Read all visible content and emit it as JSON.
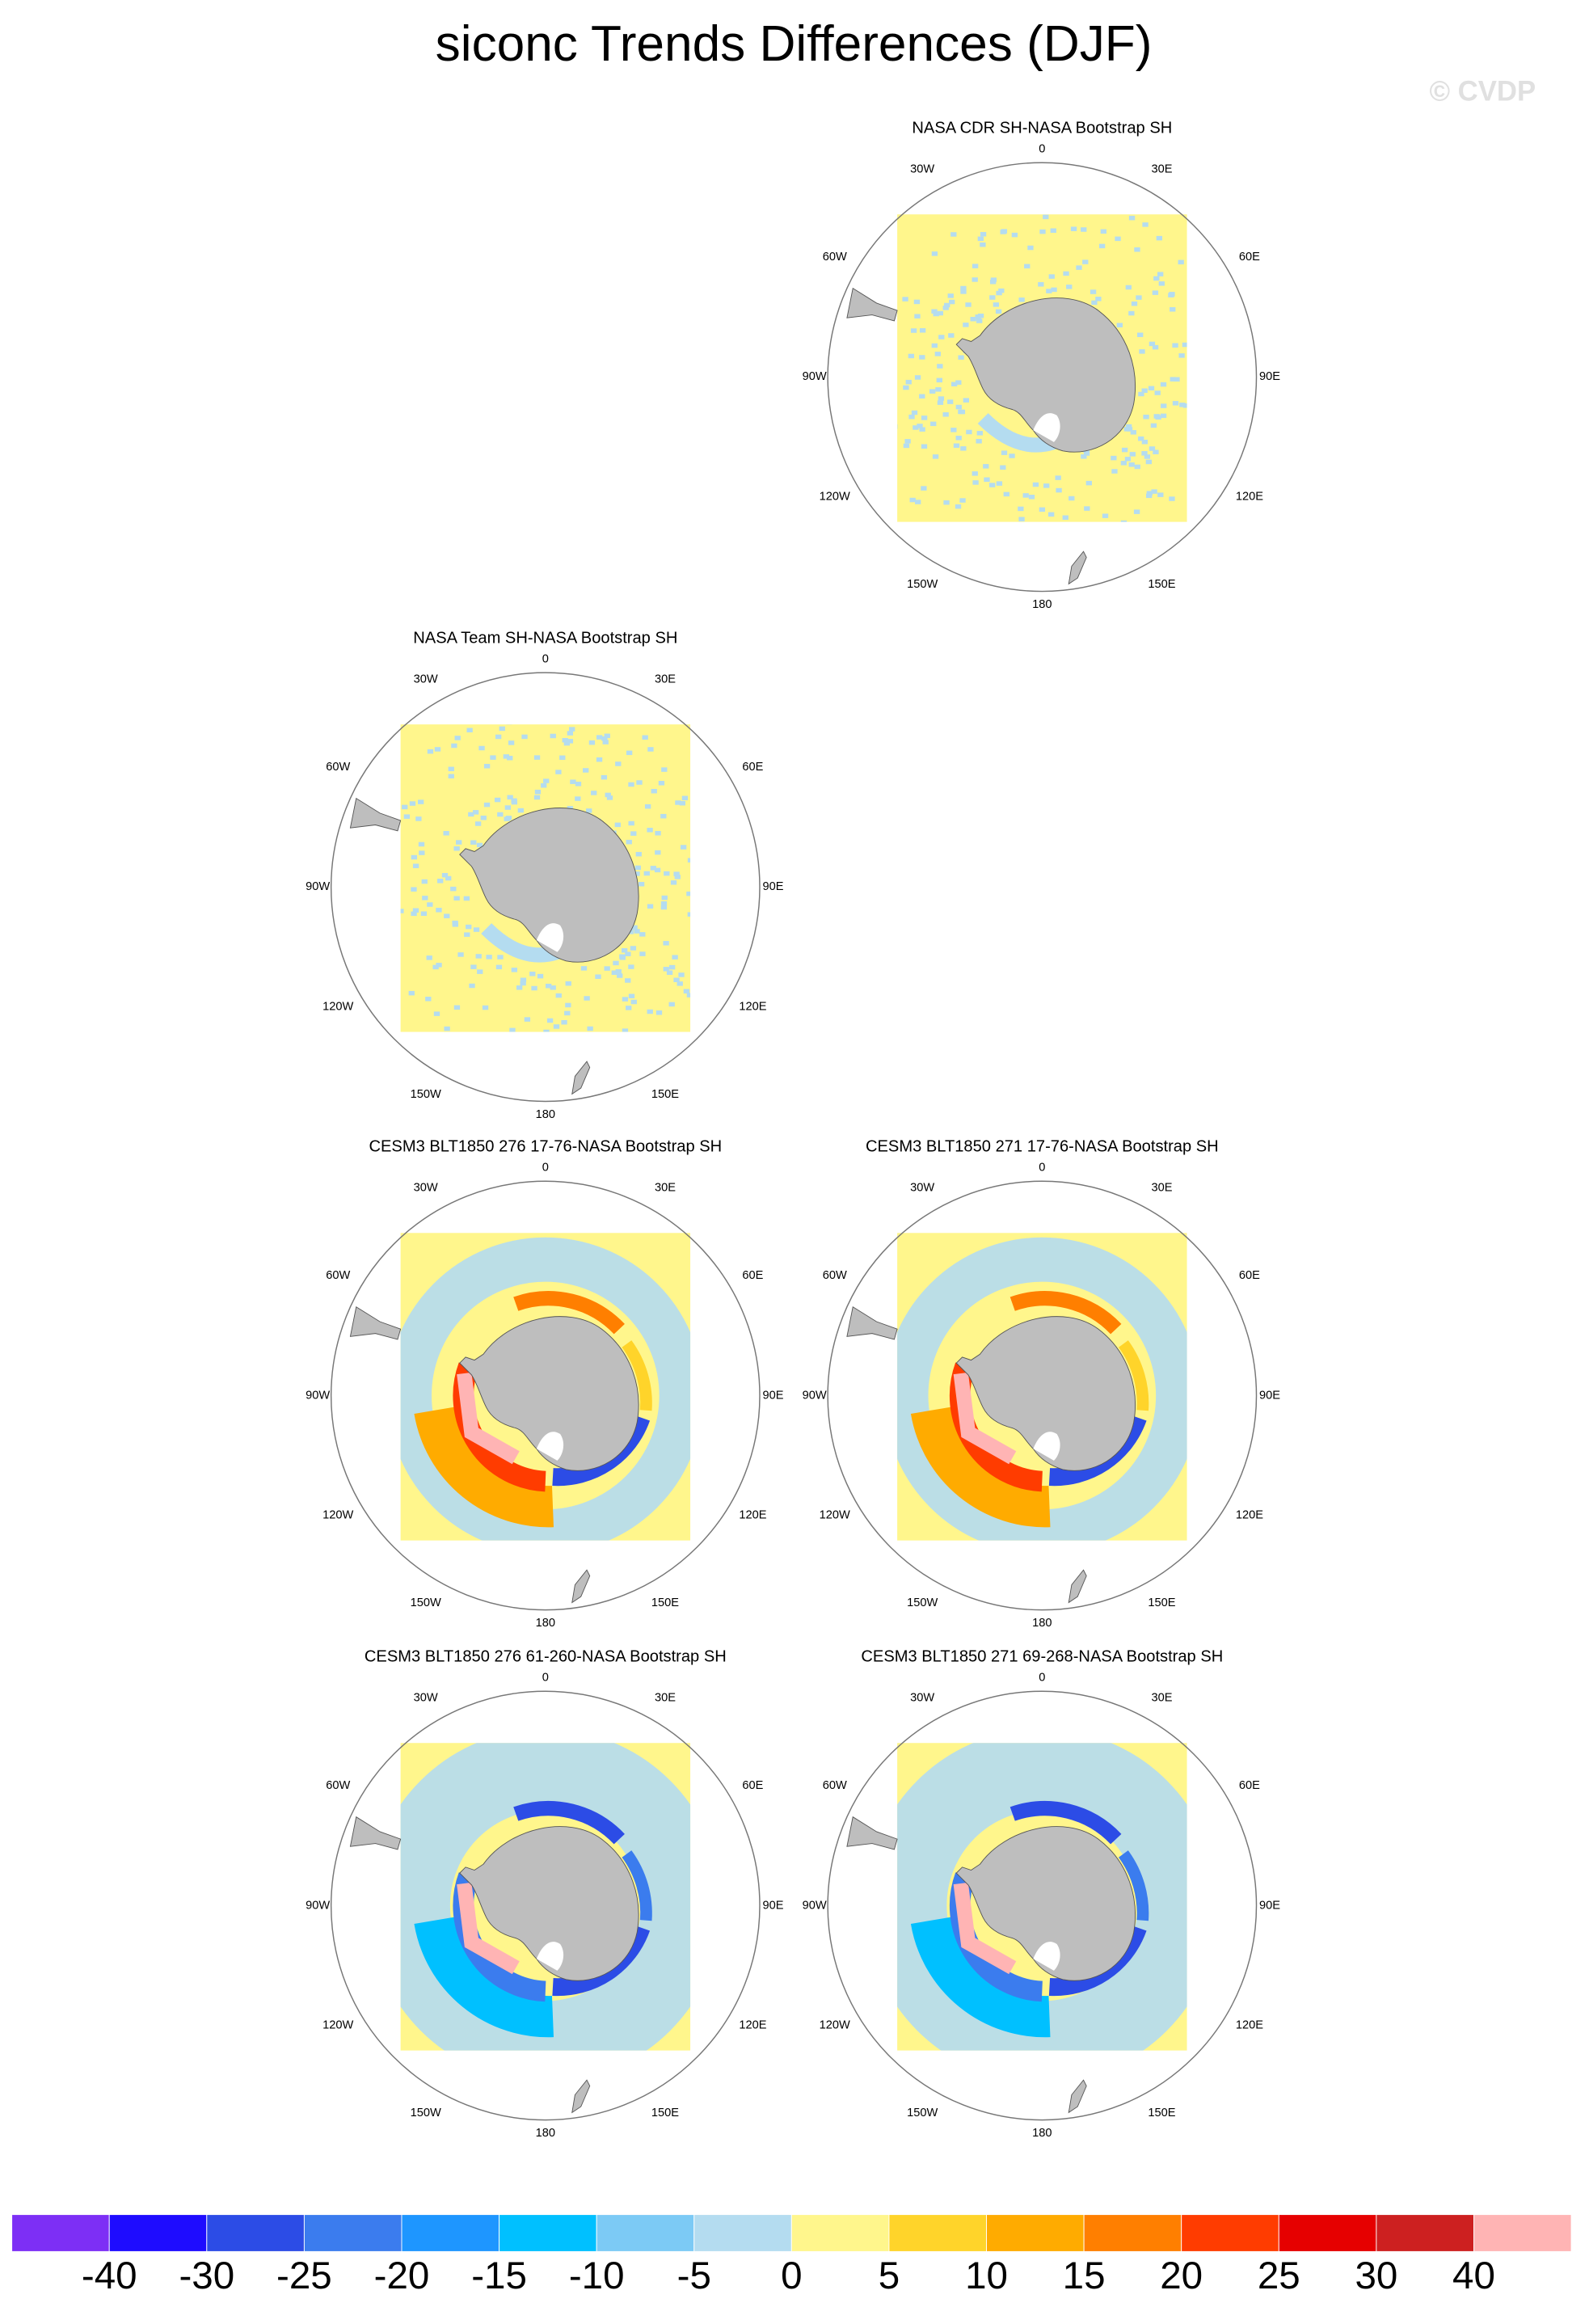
{
  "title": "siconc Trends Differences (DJF)",
  "watermark": "© CVDP",
  "panels": [
    {
      "title": "NASA CDR SH-NASA Bootstrap SH"
    },
    {
      "title": "NASA Team SH-NASA Bootstrap SH"
    },
    {
      "title": "CESM3 BLT1850 276 17-76-NASA Bootstrap SH"
    },
    {
      "title": "CESM3 BLT1850 271 17-76-NASA Bootstrap SH"
    },
    {
      "title": "CESM3 BLT1850 276 61-260-NASA Bootstrap SH"
    },
    {
      "title": "CESM3 BLT1850 271 69-268-NASA Bootstrap SH"
    }
  ],
  "lon_labels": [
    "0",
    "30E",
    "60E",
    "90E",
    "120E",
    "150E",
    "180",
    "150W",
    "120W",
    "90W",
    "60W",
    "30W"
  ],
  "colorbar": {
    "levels": [
      -40,
      -30,
      -25,
      -20,
      -15,
      -10,
      -5,
      0,
      5,
      10,
      15,
      20,
      25,
      30,
      40
    ],
    "colors": [
      "#7d2ff5",
      "#1e0cff",
      "#2c4ce6",
      "#3b7cee",
      "#1e96ff",
      "#00c0ff",
      "#7ccaf5",
      "#b4dcf0",
      "#fff68c",
      "#ffd42a",
      "#ffab00",
      "#ff7f00",
      "#ff3c00",
      "#e60000",
      "#cd2020",
      "#ffb4b4"
    ]
  }
}
